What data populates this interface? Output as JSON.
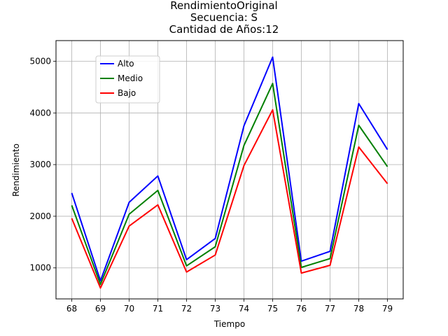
{
  "chart_data": {
    "type": "line",
    "title_lines": [
      "RendimientoOriginal",
      "Secuencia: S",
      "Cantidad de Años:12"
    ],
    "xlabel": "Tiempo",
    "ylabel": "Rendimiento",
    "x": [
      "68",
      "69",
      "70",
      "71",
      "72",
      "73",
      "74",
      "75",
      "76",
      "77",
      "78",
      "79"
    ],
    "ylim": [
      400,
      5400
    ],
    "yticks": [
      1000,
      2000,
      3000,
      4000,
      5000
    ],
    "grid": true,
    "legend_position": "upper-left",
    "series": [
      {
        "name": "Alto",
        "color": "#0000ff",
        "values": [
          2450,
          750,
          2270,
          2780,
          1160,
          1570,
          3750,
          5080,
          1130,
          1320,
          4180,
          3290
        ]
      },
      {
        "name": "Medio",
        "color": "#008000",
        "values": [
          2210,
          680,
          2040,
          2500,
          1040,
          1410,
          3370,
          4570,
          1010,
          1180,
          3760,
          2960
        ]
      },
      {
        "name": "Bajo",
        "color": "#ff0000",
        "values": [
          1960,
          610,
          1810,
          2220,
          920,
          1250,
          2980,
          4060,
          900,
          1050,
          3340,
          2630
        ]
      }
    ]
  }
}
